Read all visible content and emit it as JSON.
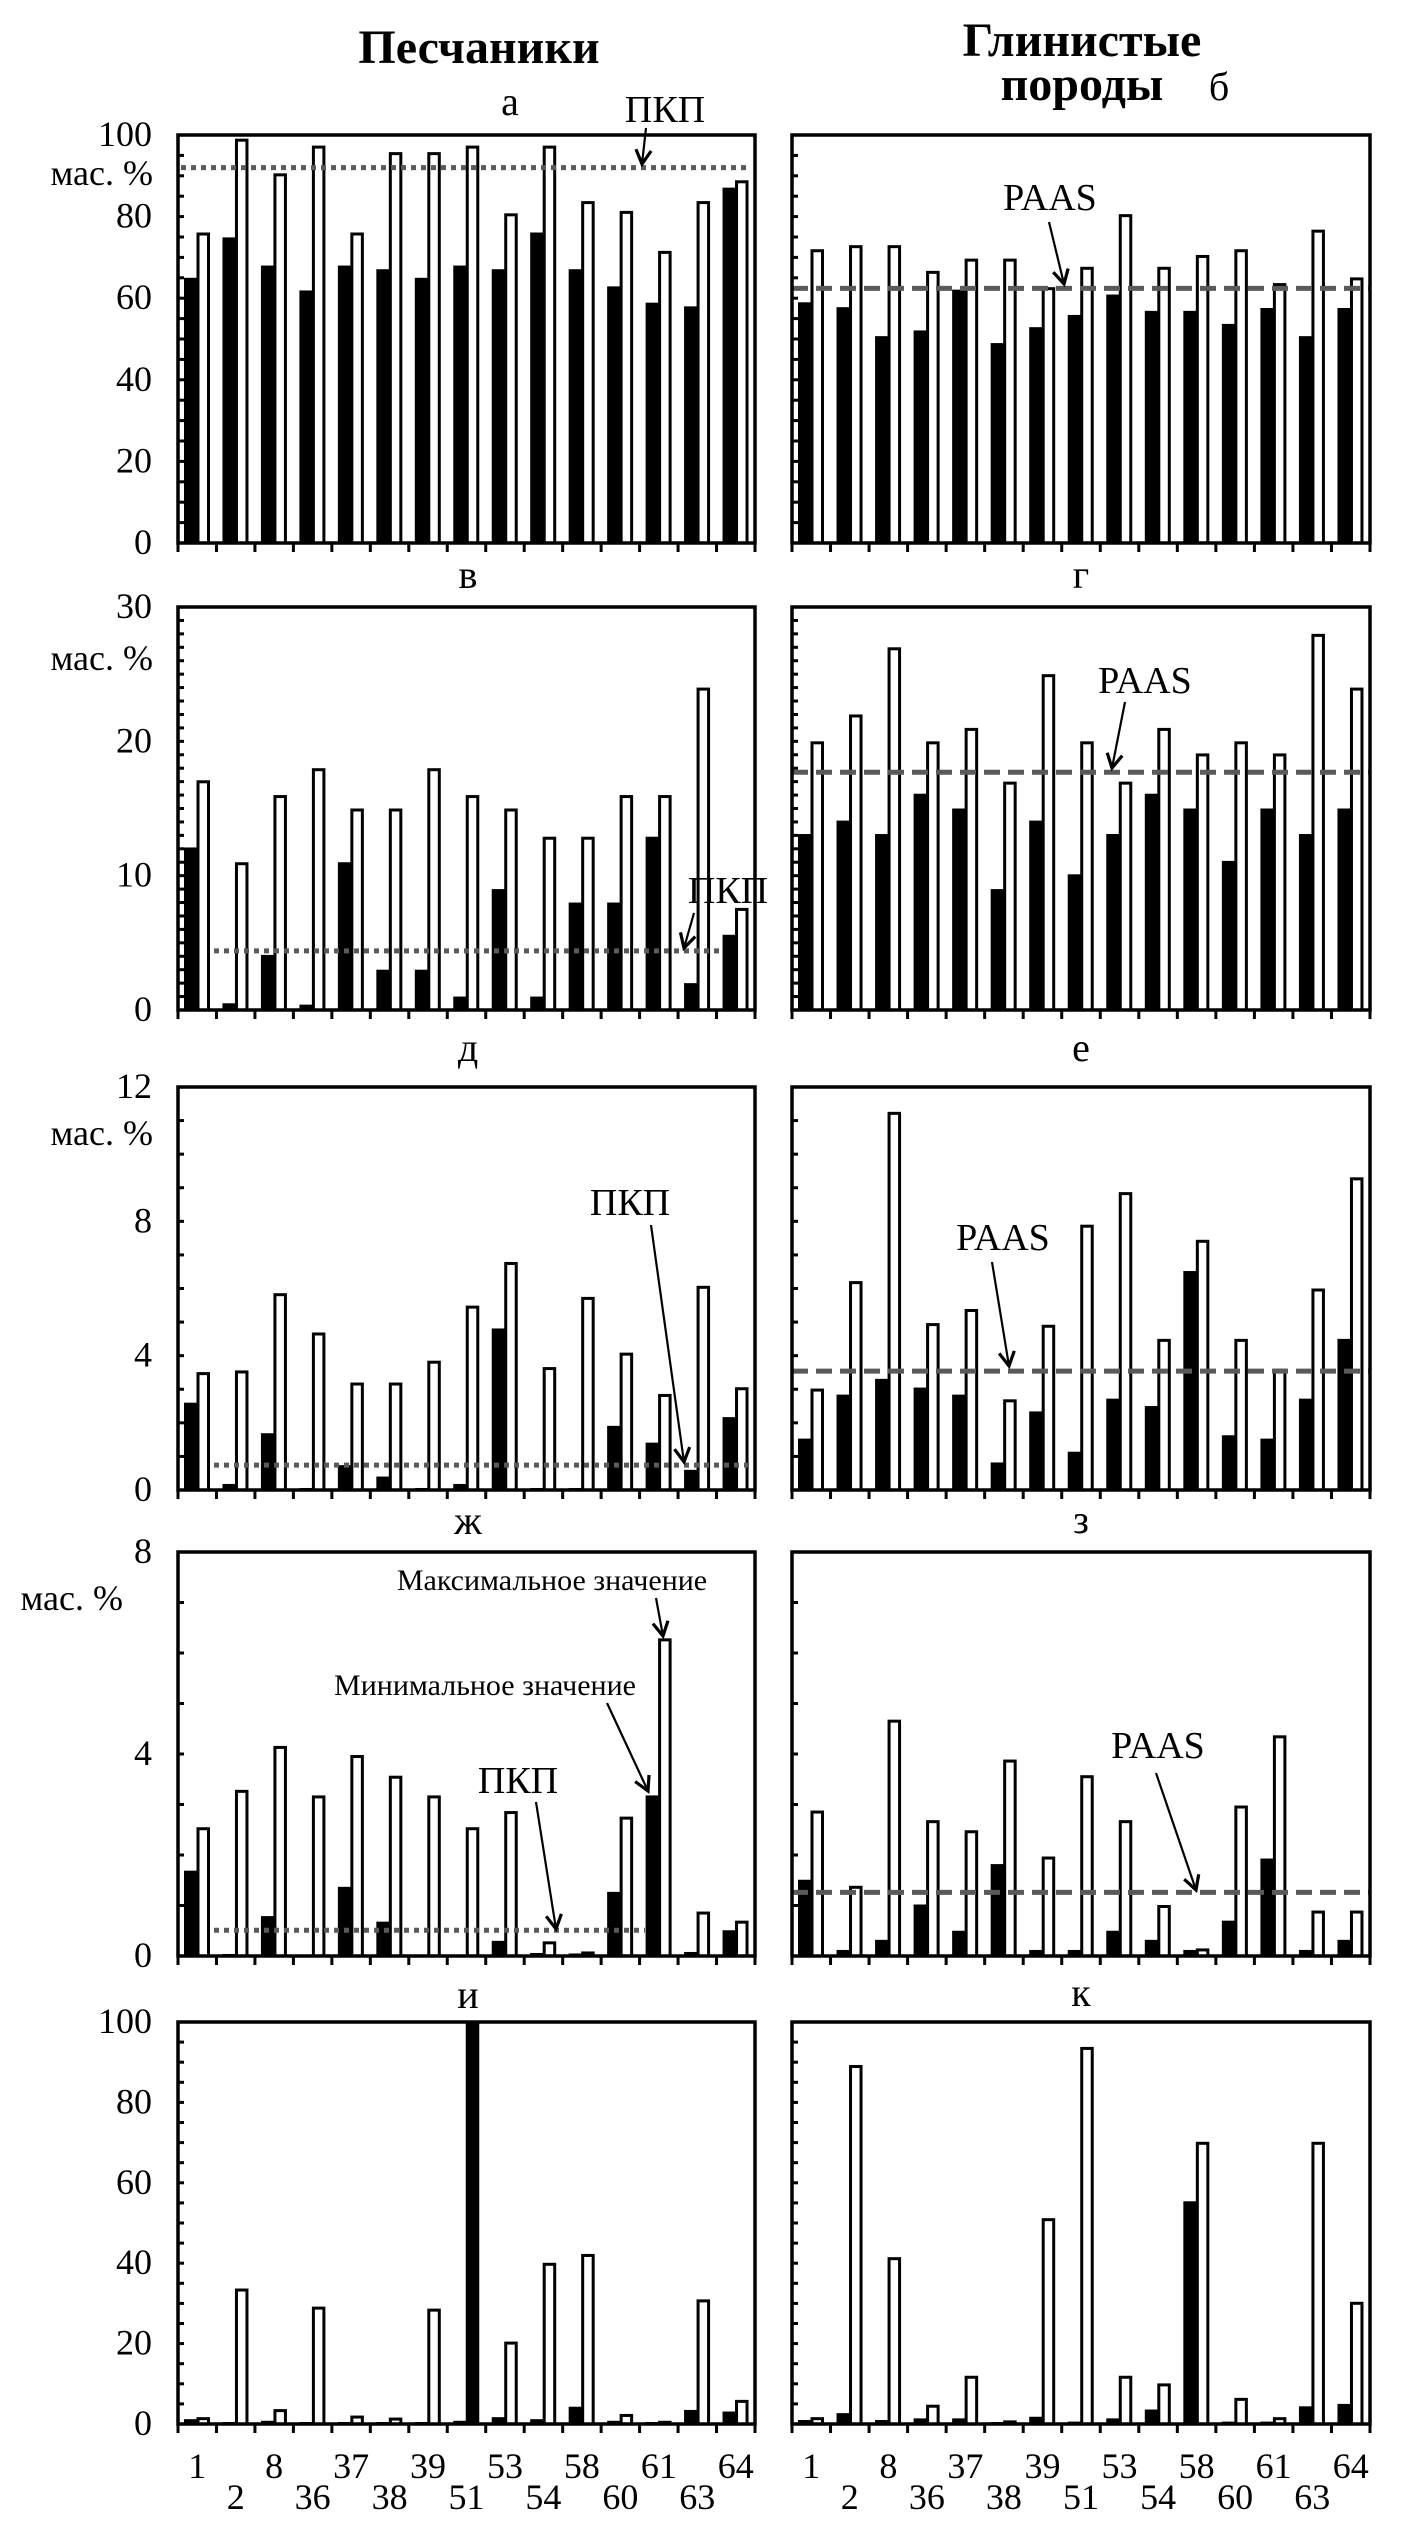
{
  "header": {
    "left_column_title": "Песчаники",
    "right_column_title_line1": "Глинистые",
    "right_column_title_line2": "породы"
  },
  "chart_data": [
    {
      "panel_label": "а",
      "group": "Песчаники",
      "type": "bar",
      "ylabel": "мас. %",
      "ylim": [
        0,
        100
      ],
      "yticks": [
        0,
        20,
        40,
        60,
        80,
        100
      ],
      "ytick_labels_visible": true,
      "minor_tick_step": 5,
      "categories": [
        "1",
        "2",
        "8",
        "36",
        "37",
        "38",
        "39",
        "51",
        "53",
        "54",
        "58",
        "60",
        "61",
        "63",
        "64"
      ],
      "xtick_labels_visible": false,
      "series": [
        {
          "key": "min",
          "name": "Минимальное значение",
          "color": "#000000",
          "values": [
            65.0,
            74.9,
            68.0,
            61.9,
            68.0,
            67.1,
            65.0,
            68.0,
            67.1,
            76.1,
            67.1,
            62.9,
            58.9,
            58.0,
            87.1
          ]
        },
        {
          "key": "max",
          "name": "Максимальное значение",
          "color": "#ffffff",
          "values": [
            76.1,
            99.1,
            90.6,
            97.4,
            76.1,
            95.8,
            95.8,
            97.4,
            80.8,
            97.4,
            83.8,
            81.4,
            71.6,
            83.8,
            88.9
          ]
        }
      ],
      "reference_line": {
        "label": "ПКП",
        "value": 92.0,
        "style": "dotted",
        "color": "#5a5a5a"
      },
      "annotations": [
        {
          "text": "ПКП",
          "target": "reference_line"
        }
      ]
    },
    {
      "panel_label": "б",
      "group": "Глинистые породы",
      "type": "bar",
      "ylabel": null,
      "ylim": [
        0,
        100
      ],
      "yticks": [
        0,
        20,
        40,
        60,
        80,
        100
      ],
      "ytick_labels_visible": false,
      "minor_tick_step": 5,
      "categories": [
        "1",
        "2",
        "8",
        "36",
        "37",
        "38",
        "39",
        "51",
        "53",
        "54",
        "58",
        "60",
        "61",
        "63",
        "64"
      ],
      "xtick_labels_visible": false,
      "series": [
        {
          "key": "min",
          "name": "Минимальное значение",
          "color": "#000000",
          "values": [
            59.0,
            57.8,
            50.7,
            52.1,
            62.1,
            49.0,
            52.9,
            55.9,
            60.9,
            56.9,
            56.9,
            53.7,
            57.6,
            50.7,
            57.6
          ]
        },
        {
          "key": "max",
          "name": "Максимальное значение",
          "color": "#ffffff",
          "values": [
            72.0,
            73.0,
            73.0,
            66.7,
            69.7,
            69.7,
            62.7,
            67.7,
            80.6,
            67.7,
            70.6,
            72.0,
            63.7,
            76.8,
            65.1
          ]
        }
      ],
      "reference_line": {
        "label": "PAAS",
        "value": 62.4,
        "style": "dashed",
        "color": "#5a5a5a"
      },
      "annotations": [
        {
          "text": "PAAS",
          "target": "reference_line"
        }
      ]
    },
    {
      "panel_label": "в",
      "group": "Песчаники",
      "type": "bar",
      "ylabel": "мас. %",
      "ylim": [
        0,
        30
      ],
      "yticks": [
        0,
        10,
        20,
        30
      ],
      "ytick_labels_visible": true,
      "minor_tick_step": 1,
      "categories": [
        "1",
        "2",
        "8",
        "36",
        "37",
        "38",
        "39",
        "51",
        "53",
        "54",
        "58",
        "60",
        "61",
        "63",
        "64"
      ],
      "xtick_labels_visible": false,
      "series": [
        {
          "key": "min",
          "name": "Минимальное значение",
          "color": "#000000",
          "values": [
            12.1,
            0.5,
            4.1,
            0.4,
            11.0,
            3.0,
            3.0,
            1.0,
            9.0,
            1.0,
            8.0,
            8.0,
            12.9,
            2.0,
            5.6
          ]
        },
        {
          "key": "max",
          "name": "Максимальное значение",
          "color": "#ffffff",
          "values": [
            17.1,
            11.0,
            16.0,
            18.0,
            15.0,
            15.0,
            18.0,
            16.0,
            15.0,
            12.9,
            12.9,
            16.0,
            16.0,
            24.0,
            7.6
          ]
        }
      ],
      "reference_line": {
        "label": "ПКП",
        "value": 4.4,
        "style": "dotted",
        "color": "#5a5a5a"
      },
      "annotations": [
        {
          "text": "ПКП",
          "target": "reference_line"
        }
      ]
    },
    {
      "panel_label": "г",
      "group": "Глинистые породы",
      "type": "bar",
      "ylabel": null,
      "ylim": [
        0,
        30
      ],
      "yticks": [
        0,
        10,
        20,
        30
      ],
      "ytick_labels_visible": false,
      "minor_tick_step": 1,
      "categories": [
        "1",
        "2",
        "8",
        "36",
        "37",
        "38",
        "39",
        "51",
        "53",
        "54",
        "58",
        "60",
        "61",
        "63",
        "64"
      ],
      "xtick_labels_visible": false,
      "series": [
        {
          "key": "min",
          "name": "Минимальное значение",
          "color": "#000000",
          "values": [
            13.1,
            14.1,
            13.1,
            16.1,
            15.0,
            9.0,
            14.1,
            10.1,
            13.1,
            16.1,
            15.0,
            11.1,
            15.0,
            13.1,
            15.0
          ]
        },
        {
          "key": "max",
          "name": "Максимальное значение",
          "color": "#ffffff",
          "values": [
            20.0,
            22.0,
            27.0,
            20.0,
            21.0,
            17.0,
            25.0,
            20.0,
            17.0,
            21.0,
            19.1,
            20.0,
            19.1,
            28.0,
            24.0
          ]
        }
      ],
      "reference_line": {
        "label": "PAAS",
        "value": 17.7,
        "style": "dashed",
        "color": "#5a5a5a"
      },
      "annotations": [
        {
          "text": "PAAS",
          "target": "reference_line"
        }
      ]
    },
    {
      "panel_label": "д",
      "group": "Песчаники",
      "type": "bar",
      "ylabel": "мас. %",
      "ylim": [
        0,
        12
      ],
      "yticks": [
        0,
        4,
        8,
        12
      ],
      "ytick_labels_visible": true,
      "minor_tick_step": 1,
      "categories": [
        "1",
        "2",
        "8",
        "36",
        "37",
        "38",
        "39",
        "51",
        "53",
        "54",
        "58",
        "60",
        "61",
        "63",
        "64"
      ],
      "xtick_labels_visible": false,
      "series": [
        {
          "key": "min",
          "name": "Минимальное значение",
          "color": "#000000",
          "values": [
            2.6,
            0.18,
            1.69,
            0.06,
            0.74,
            0.4,
            0.06,
            0.18,
            4.81,
            0.06,
            0.06,
            1.91,
            1.41,
            0.6,
            2.17
          ]
        },
        {
          "key": "max",
          "name": "Максимальное значение",
          "color": "#ffffff",
          "values": [
            3.51,
            3.56,
            5.86,
            4.69,
            3.2,
            3.2,
            3.85,
            5.49,
            6.79,
            3.66,
            5.75,
            4.09,
            2.86,
            6.08,
            3.06
          ]
        }
      ],
      "reference_line": {
        "label": "ПКП",
        "value": 0.74,
        "style": "dotted",
        "color": "#5a5a5a"
      },
      "annotations": [
        {
          "text": "ПКП",
          "target": "reference_line"
        }
      ]
    },
    {
      "panel_label": "е",
      "group": "Глинистые породы",
      "type": "bar",
      "ylabel": null,
      "ylim": [
        0,
        12
      ],
      "yticks": [
        0,
        4,
        8,
        12
      ],
      "ytick_labels_visible": false,
      "minor_tick_step": 1,
      "categories": [
        "1",
        "2",
        "8",
        "36",
        "37",
        "38",
        "39",
        "51",
        "53",
        "54",
        "58",
        "60",
        "61",
        "63",
        "64"
      ],
      "xtick_labels_visible": false,
      "series": [
        {
          "key": "min",
          "name": "Минимальное значение",
          "color": "#000000",
          "values": [
            1.53,
            2.84,
            3.31,
            3.05,
            2.84,
            0.82,
            2.34,
            1.14,
            2.72,
            2.5,
            6.52,
            1.63,
            1.53,
            2.72,
            4.5
          ]
        },
        {
          "key": "max",
          "name": "Максимальное значение",
          "color": "#ffffff",
          "values": [
            3.02,
            6.22,
            11.26,
            4.97,
            5.39,
            2.7,
            4.92,
            7.9,
            8.87,
            4.5,
            7.45,
            4.5,
            3.61,
            6.0,
            9.31
          ]
        }
      ],
      "reference_line": {
        "label": "PAAS",
        "value": 3.54,
        "style": "dashed",
        "color": "#5a5a5a"
      },
      "annotations": [
        {
          "text": "PAAS",
          "target": "reference_line"
        }
      ]
    },
    {
      "panel_label": "ж",
      "group": "Песчаники",
      "type": "bar",
      "ylabel": "мас. %",
      "ylim": [
        0,
        8
      ],
      "yticks": [
        0,
        4,
        8
      ],
      "ytick_labels_visible": true,
      "minor_tick_step": 1,
      "categories": [
        "1",
        "2",
        "8",
        "36",
        "37",
        "38",
        "39",
        "51",
        "53",
        "54",
        "58",
        "60",
        "61",
        "63",
        "64"
      ],
      "xtick_labels_visible": false,
      "series": [
        {
          "key": "min",
          "name": "Минимальное значение",
          "color": "#000000",
          "values": [
            1.69,
            0.04,
            0.79,
            0.03,
            1.37,
            0.68,
            0.03,
            0.03,
            0.3,
            0.06,
            0.05,
            1.27,
            3.18,
            0.08,
            0.51
          ]
        },
        {
          "key": "max",
          "name": "Максимальное значение",
          "color": "#ffffff",
          "values": [
            2.55,
            3.29,
            4.16,
            3.18,
            3.98,
            3.57,
            3.18,
            2.55,
            2.87,
            0.29,
            0.09,
            2.76,
            6.29,
            0.88,
            0.7
          ]
        }
      ],
      "reference_line": {
        "label": "ПКП",
        "value": 0.51,
        "style": "dotted",
        "color": "#5a5a5a"
      },
      "annotations": [
        {
          "text": "Максимальное значение",
          "target": {
            "series": "max",
            "category": "61"
          }
        },
        {
          "text": "Минимальное значение",
          "target": {
            "series": "min",
            "category": "61"
          }
        },
        {
          "text": "ПКП",
          "target": "reference_line"
        }
      ]
    },
    {
      "panel_label": "з",
      "group": "Глинистые породы",
      "type": "bar",
      "ylabel": null,
      "ylim": [
        0,
        8
      ],
      "yticks": [
        0,
        4,
        8
      ],
      "ytick_labels_visible": false,
      "minor_tick_step": 1,
      "categories": [
        "1",
        "2",
        "8",
        "36",
        "37",
        "38",
        "39",
        "51",
        "53",
        "54",
        "58",
        "60",
        "61",
        "63",
        "64"
      ],
      "xtick_labels_visible": false,
      "series": [
        {
          "key": "min",
          "name": "Минимальное значение",
          "color": "#000000",
          "values": [
            1.51,
            0.12,
            0.32,
            1.02,
            0.5,
            1.82,
            0.12,
            0.12,
            0.5,
            0.32,
            0.12,
            0.7,
            1.93,
            0.12,
            0.32
          ]
        },
        {
          "key": "max",
          "name": "Максимальное значение",
          "color": "#ffffff",
          "values": [
            2.88,
            1.39,
            4.68,
            2.69,
            2.49,
            3.89,
            1.97,
            3.58,
            2.69,
            1.01,
            0.15,
            2.98,
            4.37,
            0.9,
            0.9
          ]
        }
      ],
      "reference_line": {
        "label": "PAAS",
        "value": 1.26,
        "style": "dashed",
        "color": "#5a5a5a"
      },
      "annotations": [
        {
          "text": "PAAS",
          "target": "reference_line"
        }
      ]
    },
    {
      "panel_label": "и",
      "group": "Песчаники",
      "type": "bar",
      "ylabel": null,
      "ylim": [
        0,
        100
      ],
      "yticks": [
        0,
        20,
        40,
        60,
        80,
        100
      ],
      "ytick_labels_visible": true,
      "minor_tick_step": 5,
      "categories": [
        "1",
        "2",
        "8",
        "36",
        "37",
        "38",
        "39",
        "51",
        "53",
        "54",
        "58",
        "60",
        "61",
        "63",
        "64"
      ],
      "xtick_labels_visible": true,
      "series": [
        {
          "key": "min",
          "name": "Минимальное значение",
          "color": "#000000",
          "values": [
            1.2,
            0.5,
            0.8,
            0.5,
            0.5,
            0.5,
            0.5,
            0.8,
            1.7,
            1.2,
            4.3,
            0.8,
            0.5,
            3.5,
            3.1
          ]
        },
        {
          "key": "max",
          "name": "Максимальное значение",
          "color": "#ffffff",
          "values": [
            1.7,
            33.7,
            3.7,
            29.2,
            2.1,
            1.6,
            28.7,
            100,
            20.5,
            40.1,
            42.3,
            2.5,
            0.8,
            31.0,
            6.0
          ]
        }
      ],
      "reference_line": null,
      "annotations": []
    },
    {
      "panel_label": "к",
      "group": "Глинистые породы",
      "type": "bar",
      "ylabel": null,
      "ylim": [
        0,
        100
      ],
      "yticks": [
        0,
        20,
        40,
        60,
        80,
        100
      ],
      "ytick_labels_visible": false,
      "minor_tick_step": 5,
      "categories": [
        "1",
        "2",
        "8",
        "36",
        "37",
        "38",
        "39",
        "51",
        "53",
        "54",
        "58",
        "60",
        "61",
        "63",
        "64"
      ],
      "xtick_labels_visible": true,
      "series": [
        {
          "key": "min",
          "name": "Минимальное значение",
          "color": "#000000",
          "values": [
            1.0,
            2.7,
            1.0,
            1.4,
            1.4,
            0.5,
            1.8,
            0.6,
            1.4,
            3.6,
            55.4,
            0.6,
            0.6,
            4.4,
            5.0
          ]
        },
        {
          "key": "max",
          "name": "Максимальное значение",
          "color": "#ffffff",
          "values": [
            1.7,
            89.3,
            41.5,
            4.8,
            12.0,
            0.9,
            51.2,
            93.8,
            12.0,
            10.1,
            70.2,
            6.5,
            1.7,
            70.2,
            30.4
          ]
        }
      ],
      "reference_line": null,
      "annotations": []
    }
  ]
}
